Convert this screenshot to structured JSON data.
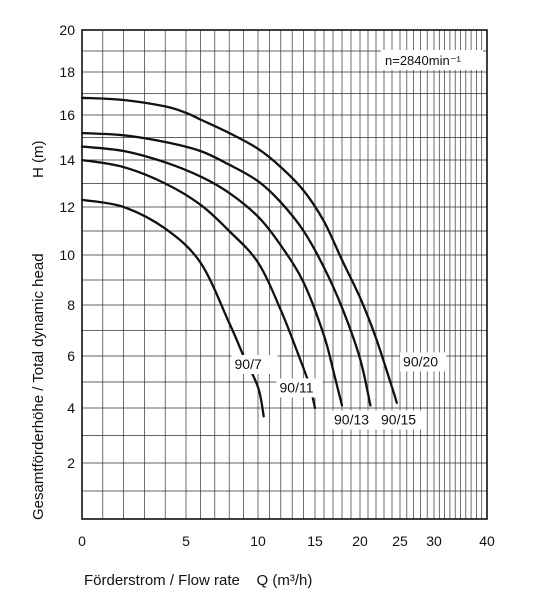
{
  "chart_data": {
    "type": "line",
    "title": "",
    "xlabel": "Förderstrom / Flow rate    Q (m³/h)",
    "ylabel_left": "Gesamtförderhöhe / Total dynamic head",
    "ylabel_right": "H (m)",
    "annotation": "n=2840min⁻¹",
    "xlim": [
      0,
      40
    ],
    "ylim": [
      0,
      20
    ],
    "x_ticks": [
      0,
      5,
      10,
      15,
      20,
      25,
      30,
      40
    ],
    "y_ticks": [
      2,
      4,
      6,
      8,
      10,
      12,
      14,
      16,
      18,
      20
    ],
    "grid": true,
    "legend": "none",
    "series": [
      {
        "name": "90/7",
        "x": [
          0,
          2,
          4,
          6,
          8,
          9,
          10,
          10.5
        ],
        "y": [
          12.3,
          12.0,
          11.1,
          9.7,
          7.3,
          6.0,
          4.8,
          3.7
        ]
      },
      {
        "name": "90/11",
        "x": [
          0,
          2,
          4,
          6,
          8,
          10,
          12,
          13.5,
          14.5,
          15
        ],
        "y": [
          14.0,
          13.7,
          13.0,
          12.1,
          11.0,
          9.7,
          7.8,
          6.1,
          4.9,
          4.0
        ]
      },
      {
        "name": "90/13",
        "x": [
          0,
          2,
          4,
          6,
          8,
          10,
          12,
          14,
          16,
          17.2,
          18
        ],
        "y": [
          14.6,
          14.4,
          13.9,
          13.3,
          12.6,
          11.6,
          10.4,
          8.9,
          6.8,
          5.2,
          4.1
        ]
      },
      {
        "name": "90/15",
        "x": [
          0,
          2,
          4,
          6,
          8,
          10,
          12,
          14,
          16,
          18,
          20,
          21.3
        ],
        "y": [
          15.2,
          15.1,
          14.8,
          14.4,
          13.8,
          13.1,
          12.2,
          11.0,
          9.5,
          7.9,
          5.9,
          4.1
        ]
      },
      {
        "name": "90/20",
        "x": [
          0,
          2,
          4,
          5,
          6,
          8,
          10,
          12,
          14,
          16,
          18,
          20,
          22,
          24,
          24.6
        ],
        "y": [
          16.8,
          16.7,
          16.4,
          16.1,
          15.8,
          15.2,
          14.5,
          13.7,
          12.7,
          11.4,
          9.8,
          8.3,
          6.7,
          4.8,
          4.2
        ]
      }
    ],
    "curve_labels": [
      "90/7",
      "90/11",
      "90/13",
      "90/15",
      "90/20"
    ]
  }
}
